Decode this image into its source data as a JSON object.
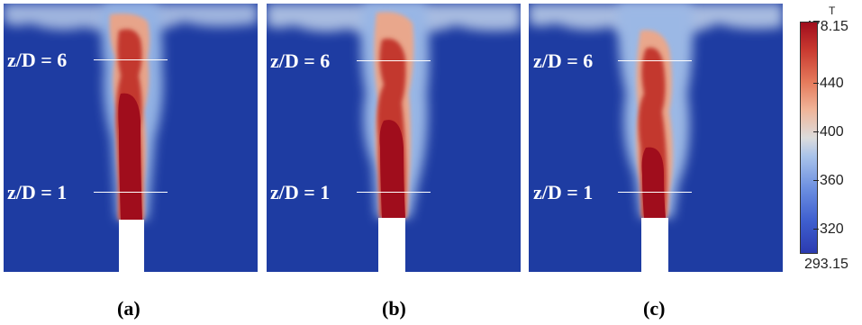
{
  "panels": [
    {
      "caption": "(a)",
      "markers": [
        "z/D = 6",
        "z/D = 1"
      ]
    },
    {
      "caption": "(b)",
      "markers": [
        "z/D = 6",
        "z/D = 1"
      ]
    },
    {
      "caption": "(c)",
      "markers": [
        "z/D = 6",
        "z/D = 1"
      ]
    }
  ],
  "colorbar": {
    "title": "T",
    "max_label": "478.15",
    "min_label": "293.15",
    "ticks": [
      "440",
      "400",
      "360",
      "320"
    ]
  },
  "colors": {
    "background": "#1e3ca2",
    "hot": "#a00d1c",
    "nozzle": "#ffffff",
    "marker": "#ffffff"
  }
}
